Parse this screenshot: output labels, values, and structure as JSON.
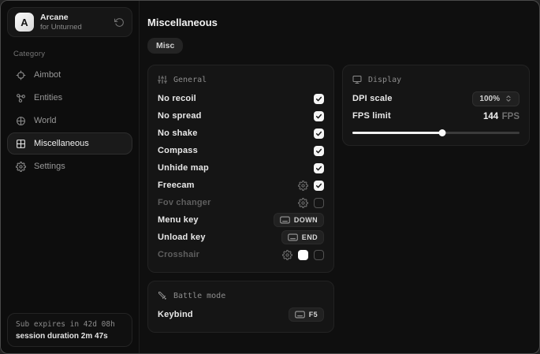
{
  "colors": {
    "window_bg": "#0f0f0f",
    "panel_bg": "#151515",
    "panel_border": "#232323",
    "accent_text": "#f0f0f0",
    "muted_text": "#8d8d8d",
    "checkbox_bg": "#f5f5f5",
    "slider_fill": "#f0f0f0"
  },
  "sidebar": {
    "avatar_letter": "A",
    "app_title": "Arcane",
    "app_subtitle": "for Unturned",
    "category_label": "Category",
    "items": [
      {
        "label": "Aimbot",
        "icon": "crosshair-icon",
        "selected": false
      },
      {
        "label": "Entities",
        "icon": "entities-icon",
        "selected": false
      },
      {
        "label": "World",
        "icon": "globe-icon",
        "selected": false
      },
      {
        "label": "Miscellaneous",
        "icon": "grid-icon",
        "selected": true
      },
      {
        "label": "Settings",
        "icon": "gear-icon",
        "selected": false
      }
    ],
    "status": {
      "line1": "Sub expires in 42d 08h",
      "line2": "session duration 2m 47s"
    }
  },
  "main": {
    "title": "Miscellaneous",
    "tab_label": "Misc",
    "general_panel": {
      "header": "General",
      "header_icon": "sliders-icon",
      "rows": [
        {
          "label": "No recoil",
          "control": "checkbox",
          "checked": true,
          "disabled": false,
          "has_settings": false
        },
        {
          "label": "No spread",
          "control": "checkbox",
          "checked": true,
          "disabled": false,
          "has_settings": false
        },
        {
          "label": "No shake",
          "control": "checkbox",
          "checked": true,
          "disabled": false,
          "has_settings": false
        },
        {
          "label": "Compass",
          "control": "checkbox",
          "checked": true,
          "disabled": false,
          "has_settings": false
        },
        {
          "label": "Unhide map",
          "control": "checkbox",
          "checked": true,
          "disabled": false,
          "has_settings": false
        },
        {
          "label": "Freecam",
          "control": "checkbox",
          "checked": true,
          "disabled": false,
          "has_settings": true
        },
        {
          "label": "Fov changer",
          "control": "checkbox",
          "checked": false,
          "disabled": true,
          "has_settings": true
        },
        {
          "label": "Menu key",
          "control": "keybind",
          "key": "DOWN"
        },
        {
          "label": "Unload key",
          "control": "keybind",
          "key": "END"
        },
        {
          "label": "Crosshair",
          "control": "checkbox",
          "checked": false,
          "disabled": true,
          "has_settings": true,
          "swatch_color": "#ffffff"
        }
      ]
    },
    "battle_panel": {
      "header": "Battle mode",
      "header_icon": "battle-icon",
      "rows": [
        {
          "label": "Keybind",
          "control": "keybind",
          "key": "F5"
        }
      ]
    },
    "display_panel": {
      "header": "Display",
      "header_icon": "monitor-icon",
      "dpi_label": "DPI scale",
      "dpi_value": "100%",
      "fps_label": "FPS limit",
      "fps_value": "144",
      "fps_unit": "FPS",
      "fps_slider_percent": 54
    }
  }
}
